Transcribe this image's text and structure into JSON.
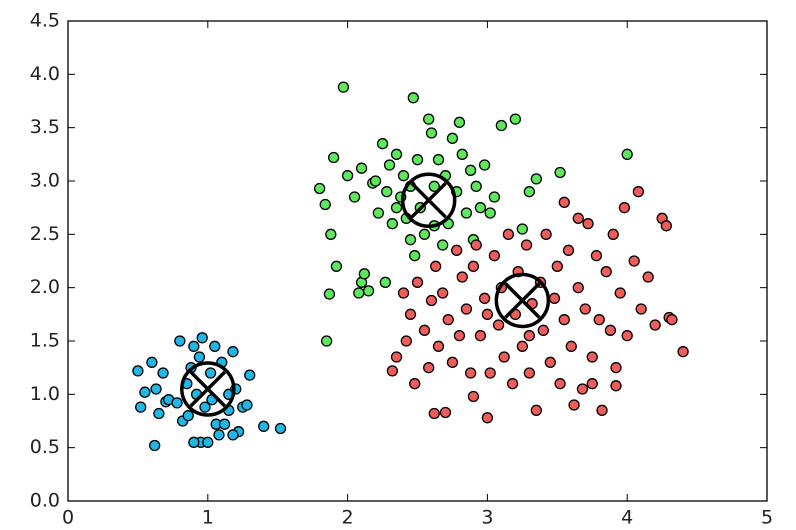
{
  "chart_data": {
    "type": "scatter",
    "xlim": [
      0,
      5
    ],
    "xticks": [
      0,
      1,
      2,
      3,
      4,
      5
    ],
    "ylim": [
      0,
      4.5
    ],
    "yticks": [
      {
        "value": 0,
        "label": "0.0"
      },
      {
        "value": 0.5,
        "label": "0.5"
      },
      {
        "value": 1,
        "label": "1.0"
      },
      {
        "value": 1.5,
        "label": "1.5"
      },
      {
        "value": 2,
        "label": "2.0"
      },
      {
        "value": 2.5,
        "label": "2.5"
      },
      {
        "value": 3,
        "label": "3.0"
      },
      {
        "value": 3.5,
        "label": "3.5"
      },
      {
        "value": 4,
        "label": "4.0"
      },
      {
        "value": 4.5,
        "label": "4.5"
      }
    ],
    "series": [
      {
        "color": "#1fb8e6",
        "x": [
          0.5,
          0.52,
          0.55,
          0.6,
          0.62,
          0.63,
          0.65,
          0.68,
          0.7,
          0.72,
          0.78,
          0.8,
          0.82,
          0.85,
          0.86,
          0.88,
          0.9,
          0.92,
          0.94,
          0.95,
          0.96,
          0.98,
          1.0,
          1.02,
          1.03,
          1.05,
          1.06,
          1.08,
          1.1,
          1.12,
          1.15,
          1.15,
          1.18,
          1.2,
          1.22,
          1.25,
          1.28,
          1.3,
          1.4,
          1.52,
          0.9,
          1.18
        ],
        "y": [
          1.22,
          0.88,
          1.02,
          1.3,
          0.52,
          1.05,
          0.82,
          1.2,
          0.93,
          0.95,
          0.92,
          1.5,
          0.75,
          1.1,
          0.8,
          1.25,
          1.45,
          1.0,
          1.35,
          0.55,
          1.53,
          0.88,
          0.55,
          1.2,
          0.95,
          1.45,
          0.72,
          0.62,
          1.3,
          0.72,
          1.0,
          0.85,
          1.4,
          1.05,
          0.65,
          0.88,
          0.9,
          1.18,
          0.7,
          0.68,
          0.55,
          0.62
        ]
      },
      {
        "color": "#5ee85e",
        "x": [
          1.8,
          1.84,
          1.85,
          1.87,
          1.88,
          1.9,
          1.92,
          1.97,
          2.0,
          2.05,
          2.08,
          2.1,
          2.12,
          2.1,
          2.15,
          2.18,
          2.2,
          2.22,
          2.25,
          2.27,
          2.28,
          2.3,
          2.32,
          2.35,
          2.38,
          2.4,
          2.42,
          2.45,
          2.47,
          2.48,
          2.5,
          2.52,
          2.55,
          2.58,
          2.6,
          2.62,
          2.65,
          2.68,
          2.7,
          2.72,
          2.75,
          2.78,
          2.8,
          2.82,
          2.85,
          2.88,
          2.9,
          2.92,
          2.95,
          2.98,
          3.02,
          3.05,
          3.1,
          3.2,
          3.25,
          3.3,
          3.35,
          3.52,
          4.0,
          2.62,
          2.45,
          2.35
        ],
        "y": [
          2.93,
          2.78,
          1.5,
          1.94,
          2.5,
          3.22,
          2.2,
          3.88,
          3.05,
          2.85,
          1.95,
          2.05,
          2.13,
          3.12,
          1.97,
          2.98,
          3.0,
          2.7,
          3.35,
          2.05,
          2.9,
          3.15,
          2.6,
          3.25,
          2.85,
          3.05,
          2.65,
          2.95,
          3.78,
          2.3,
          3.2,
          2.75,
          2.5,
          3.58,
          3.45,
          2.95,
          3.2,
          2.4,
          3.05,
          2.6,
          3.4,
          2.9,
          3.55,
          3.25,
          2.7,
          3.1,
          2.45,
          2.95,
          2.75,
          3.15,
          2.7,
          2.85,
          3.52,
          3.58,
          2.55,
          2.9,
          3.02,
          3.08,
          3.25,
          2.58,
          2.45,
          2.75
        ]
      },
      {
        "color": "#ee5c5c",
        "x": [
          2.32,
          2.35,
          2.4,
          2.42,
          2.45,
          2.48,
          2.5,
          2.55,
          2.58,
          2.6,
          2.62,
          2.63,
          2.65,
          2.68,
          2.7,
          2.72,
          2.75,
          2.78,
          2.8,
          2.82,
          2.85,
          2.88,
          2.9,
          2.92,
          2.95,
          2.98,
          3.0,
          3.02,
          3.05,
          3.08,
          3.1,
          3.12,
          3.15,
          3.18,
          3.2,
          3.22,
          3.25,
          3.28,
          3.3,
          3.32,
          3.35,
          3.38,
          3.4,
          3.42,
          3.45,
          3.48,
          3.5,
          3.52,
          3.55,
          3.58,
          3.6,
          3.62,
          3.65,
          3.68,
          3.7,
          3.72,
          3.75,
          3.78,
          3.8,
          3.82,
          3.85,
          3.88,
          3.9,
          3.92,
          3.95,
          3.98,
          4.0,
          4.05,
          4.08,
          4.1,
          4.15,
          4.2,
          4.25,
          4.28,
          4.3,
          4.32,
          4.4,
          3.92,
          3.75,
          3.65,
          3.55,
          3.3,
          3.0,
          2.9
        ],
        "y": [
          1.22,
          1.35,
          1.95,
          1.5,
          1.75,
          1.1,
          2.05,
          1.6,
          1.25,
          1.88,
          0.82,
          2.2,
          1.45,
          1.95,
          0.83,
          1.7,
          1.3,
          2.35,
          1.55,
          2.1,
          1.8,
          1.2,
          0.98,
          2.4,
          1.55,
          1.9,
          0.78,
          1.2,
          2.3,
          1.65,
          2.0,
          1.35,
          2.5,
          1.1,
          1.75,
          2.15,
          1.45,
          2.4,
          1.2,
          1.85,
          0.85,
          2.05,
          1.6,
          2.5,
          1.3,
          1.9,
          2.2,
          1.1,
          1.7,
          2.35,
          1.45,
          0.9,
          2.0,
          1.05,
          1.8,
          2.6,
          1.35,
          2.3,
          1.7,
          0.85,
          2.15,
          1.6,
          2.5,
          1.25,
          1.95,
          2.75,
          1.55,
          2.25,
          2.9,
          1.8,
          2.1,
          1.65,
          2.65,
          2.58,
          1.72,
          1.7,
          1.4,
          1.08,
          1.1,
          2.65,
          2.8,
          1.55,
          1.75,
          2.2
        ]
      }
    ],
    "centroids": {
      "color": "#000000",
      "x": [
        1.0,
        2.58,
        3.25
      ],
      "y": [
        1.05,
        2.82,
        1.88
      ]
    }
  }
}
